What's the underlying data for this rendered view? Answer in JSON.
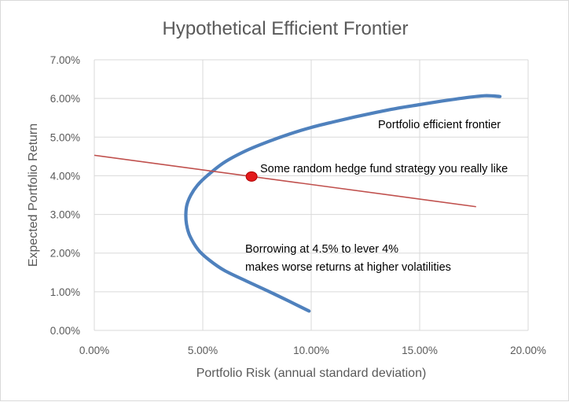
{
  "chart_data": {
    "type": "line",
    "title": "Hypothetical Efficient Frontier",
    "xlabel": "Portfolio Risk (annual standard deviation)",
    "ylabel": "Expected Portfolio Return",
    "xlim": [
      0,
      0.2
    ],
    "ylim": [
      0,
      0.07
    ],
    "x_ticks": [
      0,
      0.05,
      0.1,
      0.15,
      0.2
    ],
    "x_tick_labels": [
      "0.00%",
      "5.00%",
      "10.00%",
      "15.00%",
      "20.00%"
    ],
    "y_ticks": [
      0,
      0.01,
      0.02,
      0.03,
      0.04,
      0.05,
      0.06,
      0.07
    ],
    "y_tick_labels": [
      "0.00%",
      "1.00%",
      "2.00%",
      "3.00%",
      "4.00%",
      "5.00%",
      "6.00%",
      "7.00%"
    ],
    "grid": true,
    "legend": "none",
    "colors": {
      "frontier": "#4f81bd",
      "borrowing_line": "#c0504d",
      "hedge_fund_point": "#e31a1c",
      "text": "#595959",
      "grid": "#d9d9d9"
    },
    "series": [
      {
        "key": "frontier",
        "points": [
          [
            0.099,
            0.005
          ],
          [
            0.09,
            0.0075
          ],
          [
            0.08,
            0.0102
          ],
          [
            0.07,
            0.0128
          ],
          [
            0.06,
            0.0155
          ],
          [
            0.053,
            0.0182
          ],
          [
            0.048,
            0.0208
          ],
          [
            0.044,
            0.0245
          ],
          [
            0.0425,
            0.0275
          ],
          [
            0.0422,
            0.03
          ],
          [
            0.0427,
            0.0325
          ],
          [
            0.0445,
            0.035
          ],
          [
            0.0475,
            0.0375
          ],
          [
            0.052,
            0.04
          ],
          [
            0.06,
            0.0435
          ],
          [
            0.07,
            0.0465
          ],
          [
            0.08,
            0.0488
          ],
          [
            0.09,
            0.0508
          ],
          [
            0.1,
            0.0525
          ],
          [
            0.11,
            0.0539
          ],
          [
            0.12,
            0.0552
          ],
          [
            0.13,
            0.0564
          ],
          [
            0.14,
            0.0575
          ],
          [
            0.15,
            0.0584
          ],
          [
            0.16,
            0.0593
          ],
          [
            0.17,
            0.0601
          ],
          [
            0.18,
            0.0607
          ],
          [
            0.187,
            0.0605
          ]
        ]
      },
      {
        "key": "borrowing_line",
        "points": [
          [
            0.0,
            0.0453
          ],
          [
            0.176,
            0.032
          ]
        ]
      }
    ],
    "points": [
      {
        "key": "hedge_fund_point",
        "x": 0.0725,
        "y": 0.0398
      }
    ],
    "annotations": [
      {
        "key": "frontier_label",
        "text": "Portfolio efficient frontier"
      },
      {
        "key": "hedge_fund_label",
        "text": "Some random hedge fund strategy you really like"
      },
      {
        "key": "borrowing_label_line1",
        "text": "Borrowing at 4.5% to lever 4%"
      },
      {
        "key": "borrowing_label_line2",
        "text": "makes worse returns at higher volatilities"
      }
    ]
  }
}
